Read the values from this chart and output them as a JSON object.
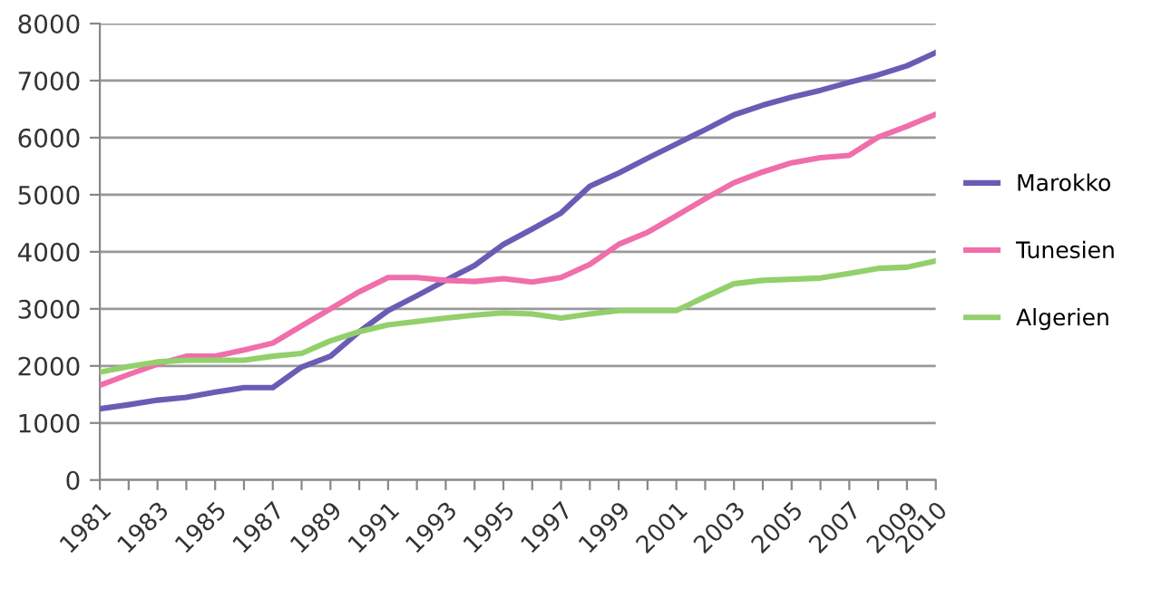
{
  "chart_data": {
    "type": "line",
    "x": [
      1981,
      1982,
      1983,
      1984,
      1985,
      1986,
      1987,
      1988,
      1989,
      1990,
      1991,
      1992,
      1993,
      1994,
      1995,
      1996,
      1997,
      1998,
      1999,
      2000,
      2001,
      2002,
      2003,
      2004,
      2005,
      2006,
      2007,
      2008,
      2009,
      2010
    ],
    "series": [
      {
        "name": "Marokko",
        "color": "#6a5cb4",
        "values": [
          1250,
          1320,
          1400,
          1450,
          1540,
          1620,
          1620,
          1980,
          2170,
          2600,
          2970,
          3230,
          3500,
          3760,
          4130,
          4400,
          4680,
          5150,
          5380,
          5640,
          5890,
          6140,
          6400,
          6570,
          6710,
          6830,
          6970,
          7100,
          7260,
          7490
        ]
      },
      {
        "name": "Tunesien",
        "color": "#f06eaa",
        "values": [
          1660,
          1850,
          2030,
          2170,
          2170,
          2280,
          2400,
          2700,
          3000,
          3300,
          3550,
          3550,
          3500,
          3480,
          3530,
          3470,
          3550,
          3780,
          4130,
          4340,
          4630,
          4930,
          5210,
          5400,
          5560,
          5650,
          5690,
          6010,
          6200,
          6410
        ]
      },
      {
        "name": "Algerien",
        "color": "#92d06c",
        "values": [
          1890,
          1990,
          2070,
          2100,
          2100,
          2100,
          2170,
          2220,
          2440,
          2600,
          2720,
          2780,
          2840,
          2890,
          2930,
          2910,
          2840,
          2910,
          2970,
          2970,
          2970,
          3210,
          3440,
          3500,
          3520,
          3540,
          3620,
          3710,
          3730,
          3840
        ]
      }
    ],
    "xlim": [
      1981,
      2010
    ],
    "xticks": [
      1981,
      {
        "value": 1982,
        "label": null
      },
      1983,
      {
        "value": 1984,
        "label": null
      },
      1985,
      {
        "value": 1986,
        "label": null
      },
      1987,
      {
        "value": 1988,
        "label": null
      },
      1989,
      {
        "value": 1990,
        "label": null
      },
      1991,
      {
        "value": 1992,
        "label": null
      },
      1993,
      {
        "value": 1994,
        "label": null
      },
      1995,
      {
        "value": 1996,
        "label": null
      },
      1997,
      {
        "value": 1998,
        "label": null
      },
      1999,
      {
        "value": 2000,
        "label": null
      },
      2001,
      {
        "value": 2002,
        "label": null
      },
      2003,
      {
        "value": 2004,
        "label": null
      },
      2005,
      {
        "value": 2006,
        "label": null
      },
      2007,
      {
        "value": 2008,
        "label": null
      },
      2009,
      2010
    ],
    "ylim": [
      0,
      8000
    ],
    "yticks": [
      0,
      1000,
      2000,
      3000,
      4000,
      5000,
      6000,
      7000,
      8000
    ],
    "grid": "y",
    "legend": "right",
    "line_style": "solid",
    "marker": "none"
  }
}
